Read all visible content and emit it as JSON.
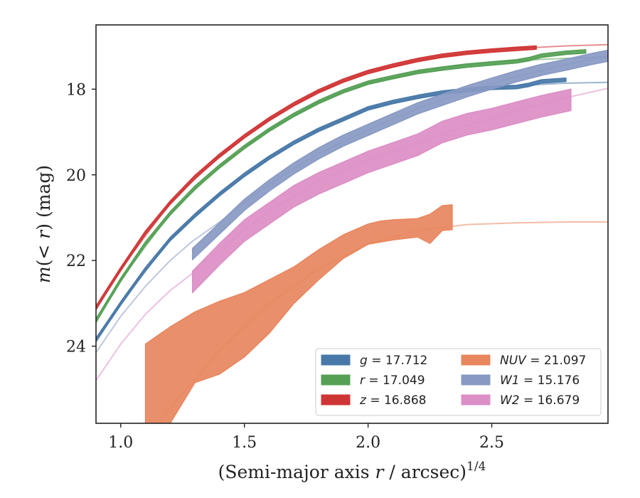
{
  "chart_data": {
    "type": "area",
    "xlabel": "(Semi-major axis r / arcsec)^1/4",
    "ylabel": "m(< r) (mag)",
    "xlim": [
      0.9,
      2.97
    ],
    "ylim": [
      25.8,
      16.5
    ],
    "xticks": [
      "1.0",
      "1.5",
      "2.0",
      "2.5"
    ],
    "yticks": [
      "18",
      "20",
      "22",
      "24"
    ],
    "grid": false,
    "legend_position": "lower-right",
    "series": [
      {
        "name": "g = 17.712",
        "band": "g",
        "value": "17.712",
        "color": "#4878a8",
        "band_halfwidth": 0.04,
        "data": [
          [
            0.9,
            23.85
          ],
          [
            1.0,
            23.0
          ],
          [
            1.1,
            22.2
          ],
          [
            1.2,
            21.5
          ],
          [
            1.3,
            20.95
          ],
          [
            1.4,
            20.45
          ],
          [
            1.5,
            20.0
          ],
          [
            1.6,
            19.6
          ],
          [
            1.7,
            19.25
          ],
          [
            1.8,
            18.95
          ],
          [
            1.9,
            18.7
          ],
          [
            2.0,
            18.45
          ],
          [
            2.1,
            18.3
          ],
          [
            2.2,
            18.18
          ],
          [
            2.3,
            18.08
          ],
          [
            2.4,
            18.02
          ],
          [
            2.5,
            17.97
          ],
          [
            2.6,
            17.95
          ],
          [
            2.65,
            17.9
          ],
          [
            2.7,
            17.82
          ],
          [
            2.8,
            17.78
          ]
        ],
        "model": [
          [
            0.9,
            23.9
          ],
          [
            1.0,
            23.0
          ],
          [
            1.2,
            21.5
          ],
          [
            1.4,
            20.45
          ],
          [
            1.6,
            19.6
          ],
          [
            1.8,
            18.95
          ],
          [
            2.0,
            18.45
          ],
          [
            2.2,
            18.18
          ],
          [
            2.4,
            18.02
          ],
          [
            2.6,
            17.92
          ],
          [
            2.8,
            17.86
          ],
          [
            2.97,
            17.84
          ]
        ]
      },
      {
        "name": "r = 17.049",
        "band": "r",
        "value": "17.049",
        "color": "#55a055",
        "band_halfwidth": 0.04,
        "data": [
          [
            0.9,
            23.4
          ],
          [
            1.0,
            22.45
          ],
          [
            1.1,
            21.6
          ],
          [
            1.2,
            20.9
          ],
          [
            1.3,
            20.3
          ],
          [
            1.4,
            19.8
          ],
          [
            1.5,
            19.35
          ],
          [
            1.6,
            18.95
          ],
          [
            1.7,
            18.6
          ],
          [
            1.8,
            18.3
          ],
          [
            1.9,
            18.05
          ],
          [
            2.0,
            17.85
          ],
          [
            2.1,
            17.72
          ],
          [
            2.2,
            17.6
          ],
          [
            2.3,
            17.52
          ],
          [
            2.4,
            17.45
          ],
          [
            2.5,
            17.4
          ],
          [
            2.6,
            17.35
          ],
          [
            2.65,
            17.3
          ],
          [
            2.7,
            17.22
          ],
          [
            2.8,
            17.15
          ],
          [
            2.88,
            17.12
          ]
        ],
        "model": [
          [
            0.9,
            23.45
          ],
          [
            1.0,
            22.45
          ],
          [
            1.2,
            20.9
          ],
          [
            1.4,
            19.8
          ],
          [
            1.6,
            18.95
          ],
          [
            1.8,
            18.3
          ],
          [
            2.0,
            17.85
          ],
          [
            2.2,
            17.6
          ],
          [
            2.4,
            17.42
          ],
          [
            2.6,
            17.33
          ],
          [
            2.8,
            17.28
          ],
          [
            2.97,
            17.25
          ]
        ]
      },
      {
        "name": "z = 16.868",
        "band": "z",
        "value": "16.868",
        "color": "#d03535",
        "band_halfwidth": 0.04,
        "data": [
          [
            0.9,
            23.1
          ],
          [
            1.0,
            22.2
          ],
          [
            1.1,
            21.35
          ],
          [
            1.2,
            20.65
          ],
          [
            1.3,
            20.05
          ],
          [
            1.4,
            19.55
          ],
          [
            1.5,
            19.1
          ],
          [
            1.6,
            18.7
          ],
          [
            1.7,
            18.35
          ],
          [
            1.8,
            18.05
          ],
          [
            1.9,
            17.8
          ],
          [
            2.0,
            17.6
          ],
          [
            2.1,
            17.45
          ],
          [
            2.2,
            17.32
          ],
          [
            2.3,
            17.22
          ],
          [
            2.4,
            17.15
          ],
          [
            2.5,
            17.1
          ],
          [
            2.6,
            17.06
          ],
          [
            2.68,
            17.03
          ]
        ],
        "model": [
          [
            0.9,
            23.15
          ],
          [
            1.0,
            22.2
          ],
          [
            1.2,
            20.65
          ],
          [
            1.4,
            19.55
          ],
          [
            1.6,
            18.7
          ],
          [
            1.8,
            18.05
          ],
          [
            2.0,
            17.6
          ],
          [
            2.2,
            17.32
          ],
          [
            2.4,
            17.15
          ],
          [
            2.6,
            17.05
          ],
          [
            2.8,
            16.99
          ],
          [
            2.97,
            16.96
          ]
        ]
      },
      {
        "name": "NUV = 21.097",
        "band": "NUV",
        "value": "21.097",
        "color": "#e8865e",
        "data_upper": [
          [
            1.1,
            23.95
          ],
          [
            1.2,
            23.55
          ],
          [
            1.3,
            23.2
          ],
          [
            1.4,
            22.95
          ],
          [
            1.5,
            22.75
          ],
          [
            1.6,
            22.45
          ],
          [
            1.7,
            22.15
          ],
          [
            1.8,
            21.75
          ],
          [
            1.9,
            21.4
          ],
          [
            2.0,
            21.15
          ],
          [
            2.05,
            21.08
          ],
          [
            2.1,
            21.05
          ],
          [
            2.2,
            21.02
          ],
          [
            2.25,
            20.92
          ],
          [
            2.3,
            20.72
          ],
          [
            2.34,
            20.7
          ]
        ],
        "data_lower": [
          [
            1.1,
            25.8
          ],
          [
            1.2,
            25.8
          ],
          [
            1.3,
            24.85
          ],
          [
            1.4,
            24.65
          ],
          [
            1.5,
            24.25
          ],
          [
            1.6,
            23.7
          ],
          [
            1.7,
            23.0
          ],
          [
            1.8,
            22.45
          ],
          [
            1.9,
            21.95
          ],
          [
            2.0,
            21.62
          ],
          [
            2.1,
            21.52
          ],
          [
            2.2,
            21.45
          ],
          [
            2.25,
            21.6
          ],
          [
            2.3,
            21.3
          ],
          [
            2.34,
            21.28
          ]
        ],
        "model": [
          [
            1.15,
            25.8
          ],
          [
            1.2,
            25.45
          ],
          [
            1.4,
            24.1
          ],
          [
            1.6,
            23.0
          ],
          [
            1.8,
            22.2
          ],
          [
            2.0,
            21.6
          ],
          [
            2.2,
            21.3
          ],
          [
            2.4,
            21.16
          ],
          [
            2.6,
            21.12
          ],
          [
            2.8,
            21.1
          ],
          [
            2.97,
            21.1
          ]
        ]
      },
      {
        "name": "W1 = 15.176",
        "band": "W1",
        "value": "15.176",
        "color": "#8899c3",
        "band_halfwidth": 0.13,
        "data": [
          [
            1.29,
            21.85
          ],
          [
            1.4,
            21.25
          ],
          [
            1.5,
            20.7
          ],
          [
            1.6,
            20.25
          ],
          [
            1.7,
            19.85
          ],
          [
            1.8,
            19.5
          ],
          [
            1.9,
            19.2
          ],
          [
            2.0,
            18.95
          ],
          [
            2.1,
            18.7
          ],
          [
            2.2,
            18.45
          ],
          [
            2.3,
            18.25
          ],
          [
            2.4,
            18.05
          ],
          [
            2.5,
            17.87
          ],
          [
            2.6,
            17.7
          ],
          [
            2.7,
            17.55
          ],
          [
            2.8,
            17.43
          ],
          [
            2.9,
            17.3
          ],
          [
            2.97,
            17.22
          ]
        ],
        "model": [
          [
            0.9,
            24.15
          ],
          [
            1.0,
            23.3
          ],
          [
            1.1,
            22.6
          ],
          [
            1.2,
            22.0
          ],
          [
            1.29,
            21.55
          ],
          [
            1.4,
            21.1
          ],
          [
            1.5,
            20.65
          ],
          [
            1.6,
            20.22
          ],
          [
            1.8,
            19.5
          ],
          [
            2.0,
            18.95
          ],
          [
            2.2,
            18.45
          ],
          [
            2.4,
            18.05
          ],
          [
            2.6,
            17.7
          ],
          [
            2.8,
            17.43
          ],
          [
            2.97,
            17.22
          ]
        ]
      },
      {
        "name": "W2 = 16.679",
        "band": "W2",
        "value": "16.679",
        "color": "#dc8ec6",
        "band_halfwidth": 0.25,
        "data": [
          [
            1.29,
            22.5
          ],
          [
            1.4,
            21.85
          ],
          [
            1.5,
            21.3
          ],
          [
            1.6,
            20.9
          ],
          [
            1.7,
            20.5
          ],
          [
            1.8,
            20.2
          ],
          [
            1.9,
            19.95
          ],
          [
            2.0,
            19.7
          ],
          [
            2.1,
            19.5
          ],
          [
            2.2,
            19.3
          ],
          [
            2.3,
            19.0
          ],
          [
            2.4,
            18.82
          ],
          [
            2.5,
            18.7
          ],
          [
            2.6,
            18.55
          ],
          [
            2.7,
            18.4
          ],
          [
            2.82,
            18.25
          ]
        ],
        "model": [
          [
            0.9,
            24.8
          ],
          [
            1.0,
            23.95
          ],
          [
            1.1,
            23.25
          ],
          [
            1.2,
            22.7
          ],
          [
            1.29,
            22.3
          ],
          [
            1.4,
            21.75
          ],
          [
            1.6,
            20.85
          ],
          [
            1.8,
            20.15
          ],
          [
            2.0,
            19.65
          ],
          [
            2.2,
            19.25
          ],
          [
            2.4,
            18.85
          ],
          [
            2.6,
            18.5
          ],
          [
            2.8,
            18.2
          ],
          [
            2.97,
            17.98
          ]
        ]
      }
    ]
  }
}
